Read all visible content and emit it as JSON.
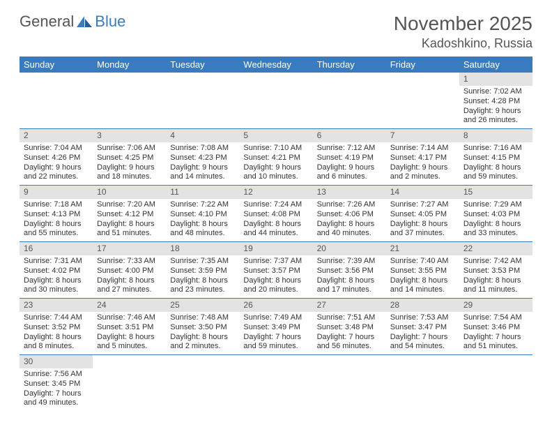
{
  "brand": {
    "part1": "General",
    "part2": "Blue"
  },
  "title": {
    "month": "November 2025",
    "location": "Kadoshkino, Russia"
  },
  "colors": {
    "header_bg": "#3a7bbf",
    "header_fg": "#ffffff",
    "daynum_bg": "#e3e3e3",
    "rule": "#3a7bbf"
  },
  "weekdays": [
    "Sunday",
    "Monday",
    "Tuesday",
    "Wednesday",
    "Thursday",
    "Friday",
    "Saturday"
  ],
  "first_weekday_index": 6,
  "days": [
    {
      "n": "1",
      "sunrise": "7:02 AM",
      "sunset": "4:28 PM",
      "daylight": "9 hours and 26 minutes."
    },
    {
      "n": "2",
      "sunrise": "7:04 AM",
      "sunset": "4:26 PM",
      "daylight": "9 hours and 22 minutes."
    },
    {
      "n": "3",
      "sunrise": "7:06 AM",
      "sunset": "4:25 PM",
      "daylight": "9 hours and 18 minutes."
    },
    {
      "n": "4",
      "sunrise": "7:08 AM",
      "sunset": "4:23 PM",
      "daylight": "9 hours and 14 minutes."
    },
    {
      "n": "5",
      "sunrise": "7:10 AM",
      "sunset": "4:21 PM",
      "daylight": "9 hours and 10 minutes."
    },
    {
      "n": "6",
      "sunrise": "7:12 AM",
      "sunset": "4:19 PM",
      "daylight": "9 hours and 6 minutes."
    },
    {
      "n": "7",
      "sunrise": "7:14 AM",
      "sunset": "4:17 PM",
      "daylight": "9 hours and 2 minutes."
    },
    {
      "n": "8",
      "sunrise": "7:16 AM",
      "sunset": "4:15 PM",
      "daylight": "8 hours and 59 minutes."
    },
    {
      "n": "9",
      "sunrise": "7:18 AM",
      "sunset": "4:13 PM",
      "daylight": "8 hours and 55 minutes."
    },
    {
      "n": "10",
      "sunrise": "7:20 AM",
      "sunset": "4:12 PM",
      "daylight": "8 hours and 51 minutes."
    },
    {
      "n": "11",
      "sunrise": "7:22 AM",
      "sunset": "4:10 PM",
      "daylight": "8 hours and 48 minutes."
    },
    {
      "n": "12",
      "sunrise": "7:24 AM",
      "sunset": "4:08 PM",
      "daylight": "8 hours and 44 minutes."
    },
    {
      "n": "13",
      "sunrise": "7:26 AM",
      "sunset": "4:06 PM",
      "daylight": "8 hours and 40 minutes."
    },
    {
      "n": "14",
      "sunrise": "7:27 AM",
      "sunset": "4:05 PM",
      "daylight": "8 hours and 37 minutes."
    },
    {
      "n": "15",
      "sunrise": "7:29 AM",
      "sunset": "4:03 PM",
      "daylight": "8 hours and 33 minutes."
    },
    {
      "n": "16",
      "sunrise": "7:31 AM",
      "sunset": "4:02 PM",
      "daylight": "8 hours and 30 minutes."
    },
    {
      "n": "17",
      "sunrise": "7:33 AM",
      "sunset": "4:00 PM",
      "daylight": "8 hours and 27 minutes."
    },
    {
      "n": "18",
      "sunrise": "7:35 AM",
      "sunset": "3:59 PM",
      "daylight": "8 hours and 23 minutes."
    },
    {
      "n": "19",
      "sunrise": "7:37 AM",
      "sunset": "3:57 PM",
      "daylight": "8 hours and 20 minutes."
    },
    {
      "n": "20",
      "sunrise": "7:39 AM",
      "sunset": "3:56 PM",
      "daylight": "8 hours and 17 minutes."
    },
    {
      "n": "21",
      "sunrise": "7:40 AM",
      "sunset": "3:55 PM",
      "daylight": "8 hours and 14 minutes."
    },
    {
      "n": "22",
      "sunrise": "7:42 AM",
      "sunset": "3:53 PM",
      "daylight": "8 hours and 11 minutes."
    },
    {
      "n": "23",
      "sunrise": "7:44 AM",
      "sunset": "3:52 PM",
      "daylight": "8 hours and 8 minutes."
    },
    {
      "n": "24",
      "sunrise": "7:46 AM",
      "sunset": "3:51 PM",
      "daylight": "8 hours and 5 minutes."
    },
    {
      "n": "25",
      "sunrise": "7:48 AM",
      "sunset": "3:50 PM",
      "daylight": "8 hours and 2 minutes."
    },
    {
      "n": "26",
      "sunrise": "7:49 AM",
      "sunset": "3:49 PM",
      "daylight": "7 hours and 59 minutes."
    },
    {
      "n": "27",
      "sunrise": "7:51 AM",
      "sunset": "3:48 PM",
      "daylight": "7 hours and 56 minutes."
    },
    {
      "n": "28",
      "sunrise": "7:53 AM",
      "sunset": "3:47 PM",
      "daylight": "7 hours and 54 minutes."
    },
    {
      "n": "29",
      "sunrise": "7:54 AM",
      "sunset": "3:46 PM",
      "daylight": "7 hours and 51 minutes."
    },
    {
      "n": "30",
      "sunrise": "7:56 AM",
      "sunset": "3:45 PM",
      "daylight": "7 hours and 49 minutes."
    }
  ],
  "labels": {
    "sunrise": "Sunrise:",
    "sunset": "Sunset:",
    "daylight": "Daylight:"
  }
}
